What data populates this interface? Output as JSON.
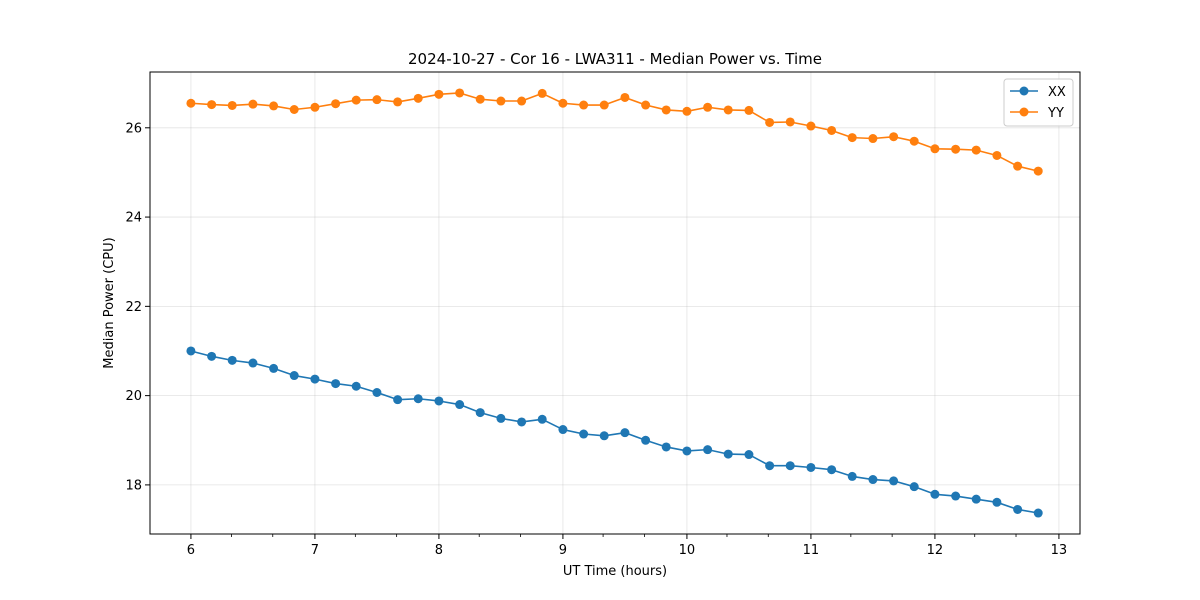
{
  "chart_data": {
    "type": "line",
    "title": "2024-10-27 - Cor 16 - LWA311 - Median Power vs. Time",
    "xlabel": "UT Time (hours)",
    "ylabel": "Median Power (CPU)",
    "xlim": [
      5.67,
      13.17
    ],
    "ylim": [
      16.9,
      27.25
    ],
    "xticks": [
      6,
      7,
      8,
      9,
      10,
      11,
      12,
      13
    ],
    "yticks": [
      18,
      20,
      22,
      24,
      26
    ],
    "x_minor_step": 0.333,
    "grid": true,
    "legend_position": "top-right",
    "x": [
      6.0,
      6.167,
      6.333,
      6.5,
      6.667,
      6.833,
      7.0,
      7.167,
      7.333,
      7.5,
      7.667,
      7.833,
      8.0,
      8.167,
      8.333,
      8.5,
      8.667,
      8.833,
      9.0,
      9.167,
      9.333,
      9.5,
      9.667,
      9.833,
      10.0,
      10.167,
      10.333,
      10.5,
      10.667,
      10.833,
      11.0,
      11.167,
      11.333,
      11.5,
      11.667,
      11.833,
      12.0,
      12.167,
      12.333,
      12.5,
      12.667,
      12.833
    ],
    "series": [
      {
        "name": "XX",
        "color": "#1f77b4",
        "values": [
          21.0,
          20.88,
          20.79,
          20.73,
          20.61,
          20.45,
          20.37,
          20.27,
          20.21,
          20.07,
          19.91,
          19.93,
          19.88,
          19.8,
          19.62,
          19.49,
          19.41,
          19.47,
          19.24,
          19.14,
          19.1,
          19.17,
          19.0,
          18.85,
          18.76,
          18.79,
          18.69,
          18.68,
          18.43,
          18.43,
          18.39,
          18.34,
          18.19,
          18.12,
          18.09,
          17.96,
          17.79,
          17.75,
          17.68,
          17.61,
          17.45,
          17.37
        ]
      },
      {
        "name": "YY",
        "color": "#ff7f0e",
        "values": [
          26.55,
          26.52,
          26.5,
          26.53,
          26.49,
          26.41,
          26.46,
          26.54,
          26.62,
          26.63,
          26.58,
          26.66,
          26.75,
          26.78,
          26.64,
          26.6,
          26.6,
          26.77,
          26.55,
          26.51,
          26.51,
          26.68,
          26.51,
          26.4,
          26.37,
          26.46,
          26.4,
          26.39,
          26.12,
          26.13,
          26.04,
          25.94,
          25.78,
          25.76,
          25.8,
          25.7,
          25.53,
          25.52,
          25.5,
          25.38,
          25.14,
          25.03
        ]
      }
    ]
  }
}
